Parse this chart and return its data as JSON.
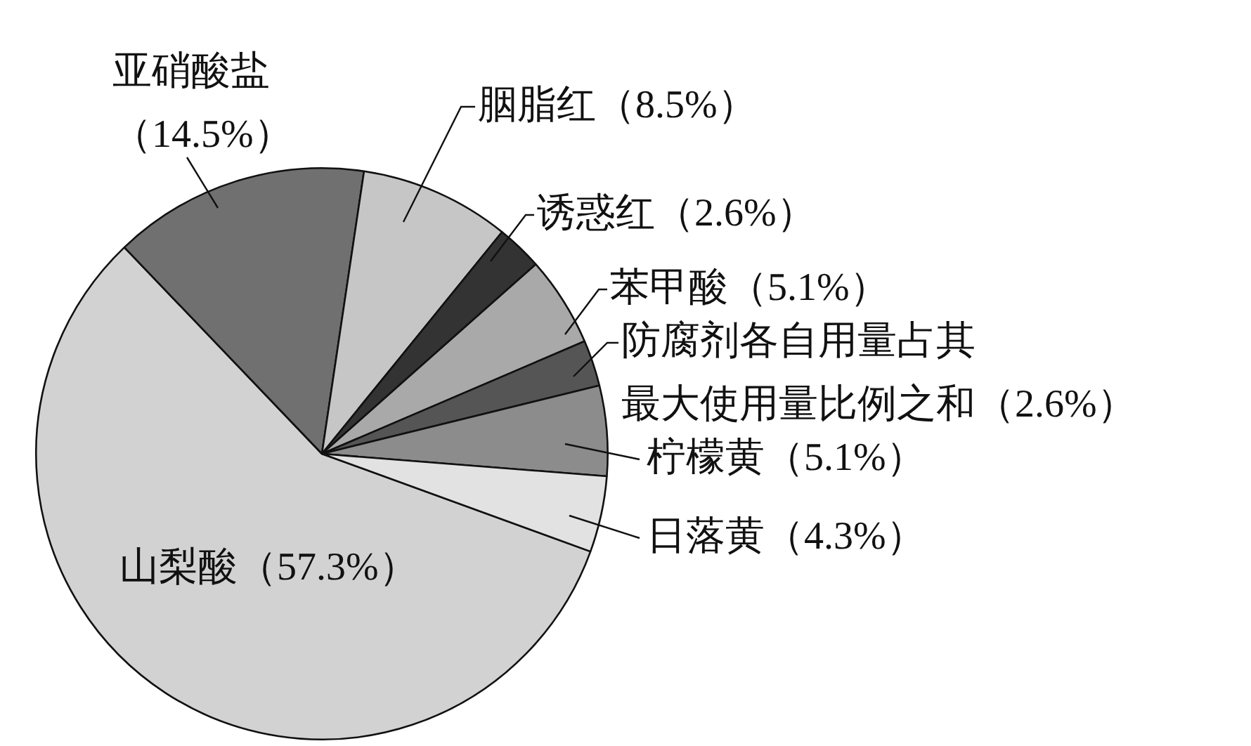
{
  "chart_data": {
    "type": "pie",
    "categories": [
      "山梨酸",
      "亚硝酸盐",
      "胭脂红",
      "诱惑红",
      "苯甲酸",
      "防腐剂各自用量占其最大使用量比例之和",
      "柠檬黄",
      "日落黄"
    ],
    "values": [
      57.3,
      14.5,
      8.5,
      2.6,
      5.1,
      2.6,
      5.1,
      4.3
    ],
    "value_labels": [
      "（57.3%）",
      "（14.5%）",
      "（8.5%）",
      "（2.6%）",
      "（5.1%）",
      "（2.6%）",
      "（5.1%）",
      "（4.3%）"
    ],
    "colors": [
      "#d2d2d2",
      "#707070",
      "#c6c6c6",
      "#333333",
      "#a9a9a9",
      "#555555",
      "#8c8c8c",
      "#e2e2e2"
    ],
    "legend": false
  }
}
